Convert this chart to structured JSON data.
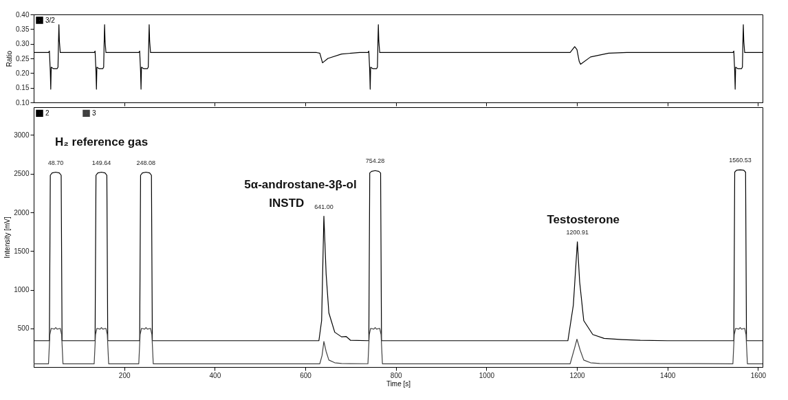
{
  "chart_data": [
    {
      "type": "line",
      "ylabel": "Ratio",
      "xlim": [
        0,
        1610
      ],
      "xticks": [
        200,
        400,
        600,
        800,
        1000,
        1200,
        1400,
        1600
      ],
      "ylim": [
        0.1,
        0.4
      ],
      "yticks": [
        {
          "value": 0.1,
          "label": "0.10"
        },
        0.15,
        {
          "value": 0.2,
          "label": "0.20"
        },
        0.25,
        {
          "value": 0.3,
          "label": "0.30"
        },
        0.35,
        {
          "value": 0.4,
          "label": "0.40"
        }
      ],
      "tick_labels": "y",
      "legend": "top left",
      "grid": false,
      "series": [
        {
          "name": "3/2",
          "color": "#000000",
          "x": [
            0,
            32.7,
            34.7,
            36.7,
            37.7,
            38.7,
            43.7,
            51.7,
            53.7,
            54.7,
            55.7,
            56.7,
            58.7,
            133.6,
            135.6,
            137.6,
            138.6,
            139.6,
            144.6,
            152.6,
            154.6,
            155.6,
            156.6,
            157.6,
            159.6,
            232.1,
            234.1,
            236.1,
            237.1,
            238.1,
            243.1,
            251.1,
            253.1,
            254.1,
            255.1,
            256.1,
            258.1,
            625,
            632,
            638,
            650,
            680,
            720,
            738.3,
            740.3,
            742.3,
            743.3,
            744.3,
            749.3,
            757.3,
            759.3,
            760.3,
            761.3,
            762.3,
            764.3,
            1185,
            1195,
            1200,
            1205,
            1208,
            1230,
            1270,
            1310,
            1544.5,
            1546.5,
            1548.5,
            1549.5,
            1550.5,
            1555.5,
            1563.5,
            1565.5,
            1566.5,
            1567.5,
            1568.5,
            1570.5,
            1610
          ],
          "values": [
            0.27,
            0.27,
            0.275,
            0.205,
            0.145,
            0.22,
            0.215,
            0.215,
            0.22,
            0.3,
            0.365,
            0.31,
            0.27,
            0.27,
            0.275,
            0.205,
            0.145,
            0.22,
            0.215,
            0.215,
            0.22,
            0.3,
            0.365,
            0.31,
            0.27,
            0.27,
            0.275,
            0.205,
            0.145,
            0.22,
            0.215,
            0.215,
            0.22,
            0.3,
            0.365,
            0.31,
            0.27,
            0.27,
            0.268,
            0.235,
            0.25,
            0.265,
            0.27,
            0.27,
            0.275,
            0.205,
            0.145,
            0.22,
            0.215,
            0.215,
            0.22,
            0.3,
            0.365,
            0.31,
            0.27,
            0.27,
            0.29,
            0.28,
            0.24,
            0.23,
            0.255,
            0.268,
            0.27,
            0.27,
            0.275,
            0.205,
            0.145,
            0.22,
            0.215,
            0.215,
            0.22,
            0.3,
            0.365,
            0.31,
            0.27,
            0.27
          ]
        }
      ]
    },
    {
      "type": "line",
      "xlabel": "Time [s]",
      "ylabel": "Intensity [mV]",
      "xlim": [
        0,
        1610
      ],
      "xticks": [
        200,
        400,
        600,
        800,
        1000,
        1200,
        1400,
        1600
      ],
      "ylim": [
        0,
        3360
      ],
      "yticks": [
        500,
        1000,
        1500,
        2000,
        2500,
        3000
      ],
      "legend": "top left",
      "grid": false,
      "series": [
        {
          "name": "2",
          "color": "#000000",
          "x": [
            0,
            34.7,
            36.7,
            40.7,
            48.7,
            56.7,
            60.7,
            62.7,
            135.6,
            137.6,
            141.6,
            149.6,
            157.6,
            161.6,
            163.6,
            234.1,
            236.1,
            240.1,
            248.1,
            256.1,
            260.1,
            262.1,
            600,
            630,
            636,
            641,
            646,
            652,
            665,
            680,
            690,
            700,
            740.3,
            742.3,
            746.3,
            754.3,
            762.3,
            766.3,
            768.3,
            800,
            1180,
            1192,
            1200.9,
            1206,
            1215,
            1235,
            1260,
            1300,
            1340,
            1400,
            1546.5,
            1548.5,
            1552.5,
            1560.5,
            1568.5,
            1572.5,
            1574.5,
            1610
          ],
          "values": [
            340,
            340,
            2480,
            2510,
            2520,
            2510,
            2480,
            340,
            340,
            2480,
            2510,
            2520,
            2510,
            2480,
            340,
            340,
            2480,
            2510,
            2520,
            2510,
            2480,
            340,
            340,
            340,
            600,
            1950,
            1200,
            700,
            450,
            390,
            395,
            345,
            340,
            2510,
            2530,
            2540,
            2530,
            2510,
            340,
            340,
            340,
            800,
            1620,
            1100,
            600,
            420,
            370,
            355,
            345,
            340,
            340,
            2520,
            2545,
            2550,
            2545,
            2520,
            340,
            340
          ]
        },
        {
          "name": "3",
          "color": "#404040",
          "x": [
            0,
            32.7,
            35.7,
            38.7,
            45.7,
            48.7,
            51.7,
            58.7,
            61.7,
            64.7,
            133.6,
            136.6,
            139.6,
            146.6,
            149.6,
            152.6,
            159.6,
            162.6,
            165.6,
            232.1,
            235.1,
            238.1,
            245.1,
            248.1,
            251.1,
            258.1,
            261.1,
            264.1,
            632,
            637,
            641,
            646,
            652,
            665,
            680,
            738.3,
            741.3,
            744.3,
            751.3,
            754.3,
            757.3,
            764.3,
            767.3,
            770.3,
            1185,
            1195,
            1200,
            1207,
            1215,
            1230,
            1250,
            1544.5,
            1547.5,
            1550.5,
            1557.5,
            1560.5,
            1563.5,
            1570.5,
            1573.5,
            1576.5,
            1610
          ],
          "values": [
            42,
            42,
            420,
            500,
            490,
            510,
            490,
            500,
            420,
            42,
            42,
            420,
            500,
            490,
            510,
            490,
            500,
            420,
            42,
            42,
            420,
            500,
            490,
            510,
            490,
            500,
            420,
            42,
            42,
            150,
            330,
            200,
            90,
            55,
            45,
            42,
            420,
            500,
            490,
            510,
            490,
            500,
            420,
            42,
            42,
            250,
            360,
            220,
            90,
            55,
            45,
            42,
            420,
            500,
            490,
            510,
            490,
            500,
            420,
            42,
            42
          ]
        }
      ],
      "annotations": [
        {
          "text": "48.70",
          "x": 48.7,
          "y": 2520
        },
        {
          "text": "149.64",
          "x": 149.64,
          "y": 2520
        },
        {
          "text": "248.08",
          "x": 248.08,
          "y": 2520
        },
        {
          "text": "641.00",
          "x": 641.0,
          "y": 1950
        },
        {
          "text": "754.28",
          "x": 754.28,
          "y": 2540
        },
        {
          "text": "1200.91",
          "x": 1200.91,
          "y": 1620
        },
        {
          "text": "1560.53",
          "x": 1560.53,
          "y": 2550
        },
        "H₂ reference gas",
        "5α-androstane-3β-ol",
        "INSTD",
        "Testosterone"
      ]
    }
  ]
}
